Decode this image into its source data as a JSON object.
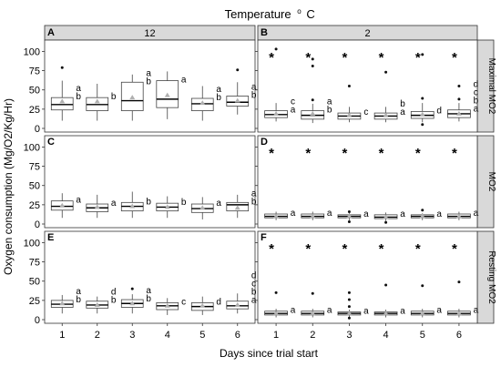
{
  "chart_data": {
    "type": "boxplot",
    "title": "Temperature (°C)",
    "title_main": "Temperature",
    "title_unit": "C",
    "title_degree": "o",
    "xlabel": "Days since trial start",
    "ylabel": "Oxygen consumption (Mg/O2/Kg/Hr)",
    "x_ticks": [
      "1",
      "2",
      "3",
      "4",
      "5",
      "6"
    ],
    "y_ticks": [
      "0",
      "25",
      "50",
      "75",
      "100"
    ],
    "ylim": [
      0,
      110
    ],
    "columns": [
      "12",
      "2"
    ],
    "rows": [
      "Maximal MO2",
      "MO2",
      "Resting MO2"
    ],
    "panels": [
      {
        "id": "A",
        "row": 0,
        "col": 0,
        "boxes": [
          {
            "day": 1,
            "q1": 24,
            "median": 31,
            "q3": 40,
            "wlo": 10,
            "whi": 62,
            "mean": 35,
            "outliers": [
              79
            ],
            "letters": "ab",
            "star": false
          },
          {
            "day": 2,
            "q1": 23,
            "median": 31,
            "q3": 40,
            "wlo": 10,
            "whi": 58,
            "mean": 35,
            "outliers": [],
            "letters": "b",
            "star": false
          },
          {
            "day": 3,
            "q1": 23,
            "median": 36,
            "q3": 60,
            "wlo": 10,
            "whi": 70,
            "mean": 40,
            "outliers": [],
            "letters": "ab",
            "star": false
          },
          {
            "day": 4,
            "q1": 27,
            "median": 38,
            "q3": 62,
            "wlo": 12,
            "whi": 74,
            "mean": 43,
            "outliers": [],
            "letters": "a",
            "star": false
          },
          {
            "day": 5,
            "q1": 23,
            "median": 32,
            "q3": 39,
            "wlo": 10,
            "whi": 55,
            "mean": 33,
            "outliers": [],
            "letters": "ab",
            "star": false
          },
          {
            "day": 6,
            "q1": 29,
            "median": 34,
            "q3": 42,
            "wlo": 18,
            "whi": 60,
            "mean": 36,
            "outliers": [
              76
            ],
            "letters": "ab",
            "star": false
          }
        ]
      },
      {
        "id": "B",
        "row": 0,
        "col": 1,
        "boxes": [
          {
            "day": 1,
            "q1": 14,
            "median": 18,
            "q3": 23,
            "wlo": 9,
            "whi": 33,
            "mean": 19,
            "outliers": [
              103
            ],
            "letters": "ca",
            "star": true
          },
          {
            "day": 2,
            "q1": 12,
            "median": 17,
            "q3": 23,
            "wlo": 7,
            "whi": 32,
            "mean": 19,
            "outliers": [
              37,
              81,
              90
            ],
            "letters": "ab",
            "star": true
          },
          {
            "day": 3,
            "q1": 12,
            "median": 16,
            "q3": 20,
            "wlo": 8,
            "whi": 28,
            "mean": 17,
            "outliers": [
              55
            ],
            "letters": "c",
            "star": true
          },
          {
            "day": 4,
            "q1": 12,
            "median": 16,
            "q3": 20,
            "wlo": 8,
            "whi": 28,
            "mean": 17,
            "outliers": [
              73
            ],
            "letters": "ba",
            "star": true
          },
          {
            "day": 5,
            "q1": 13,
            "median": 17,
            "q3": 22,
            "wlo": 8,
            "whi": 33,
            "mean": 18,
            "outliers": [
              5,
              39,
              96
            ],
            "letters": "d",
            "star": true
          },
          {
            "day": 6,
            "q1": 14,
            "median": 19,
            "q3": 24,
            "wlo": 9,
            "whi": 33,
            "mean": 19,
            "outliers": [
              38,
              55
            ],
            "letters": "dcba",
            "star": true
          }
        ]
      },
      {
        "id": "C",
        "row": 1,
        "col": 0,
        "boxes": [
          {
            "day": 1,
            "q1": 18,
            "median": 23,
            "q3": 30,
            "wlo": 8,
            "whi": 40,
            "mean": 24,
            "outliers": [],
            "letters": "a",
            "star": false
          },
          {
            "day": 2,
            "q1": 16,
            "median": 21,
            "q3": 26,
            "wlo": 8,
            "whi": 38,
            "mean": 22,
            "outliers": [],
            "letters": "a",
            "star": false
          },
          {
            "day": 3,
            "q1": 17,
            "median": 23,
            "q3": 28,
            "wlo": 8,
            "whi": 42,
            "mean": 23,
            "outliers": [],
            "letters": "b",
            "star": false
          },
          {
            "day": 4,
            "q1": 17,
            "median": 22,
            "q3": 27,
            "wlo": 8,
            "whi": 36,
            "mean": 22,
            "outliers": [],
            "letters": "b",
            "star": false
          },
          {
            "day": 5,
            "q1": 15,
            "median": 20,
            "q3": 26,
            "wlo": 6,
            "whi": 35,
            "mean": 21,
            "outliers": [],
            "letters": "a",
            "star": false
          },
          {
            "day": 6,
            "q1": 17,
            "median": 25,
            "q3": 28,
            "wlo": 8,
            "whi": 38,
            "mean": 21,
            "outliers": [],
            "letters": "ab",
            "star": false
          }
        ]
      },
      {
        "id": "D",
        "row": 1,
        "col": 1,
        "boxes": [
          {
            "day": 1,
            "q1": 8,
            "median": 10,
            "q3": 13,
            "wlo": 5,
            "whi": 16,
            "mean": 10,
            "outliers": [],
            "letters": "a",
            "star": true
          },
          {
            "day": 2,
            "q1": 8,
            "median": 10,
            "q3": 13,
            "wlo": 5,
            "whi": 16,
            "mean": 10,
            "outliers": [],
            "letters": "a",
            "star": true
          },
          {
            "day": 3,
            "q1": 8,
            "median": 10,
            "q3": 12,
            "wlo": 5,
            "whi": 14,
            "mean": 10,
            "outliers": [
              3,
              16
            ],
            "letters": "a",
            "star": true
          },
          {
            "day": 4,
            "q1": 7,
            "median": 9,
            "q3": 12,
            "wlo": 4,
            "whi": 15,
            "mean": 9,
            "outliers": [
              2
            ],
            "letters": "a",
            "star": true
          },
          {
            "day": 5,
            "q1": 8,
            "median": 10,
            "q3": 12,
            "wlo": 5,
            "whi": 14,
            "mean": 10,
            "outliers": [
              18
            ],
            "letters": "a",
            "star": true
          },
          {
            "day": 6,
            "q1": 8,
            "median": 10,
            "q3": 13,
            "wlo": 5,
            "whi": 16,
            "mean": 10,
            "outliers": [],
            "letters": "a",
            "star": true
          }
        ]
      },
      {
        "id": "E",
        "row": 2,
        "col": 0,
        "boxes": [
          {
            "day": 1,
            "q1": 16,
            "median": 20,
            "q3": 25,
            "wlo": 8,
            "whi": 32,
            "mean": 21,
            "outliers": [],
            "letters": "ab",
            "star": false
          },
          {
            "day": 2,
            "q1": 15,
            "median": 19,
            "q3": 24,
            "wlo": 8,
            "whi": 30,
            "mean": 19,
            "outliers": [],
            "letters": "db",
            "star": false
          },
          {
            "day": 3,
            "q1": 16,
            "median": 21,
            "q3": 26,
            "wlo": 8,
            "whi": 33,
            "mean": 21,
            "outliers": [
              40
            ],
            "letters": "ab",
            "star": false
          },
          {
            "day": 4,
            "q1": 13,
            "median": 18,
            "q3": 22,
            "wlo": 6,
            "whi": 28,
            "mean": 18,
            "outliers": [],
            "letters": "c",
            "star": false
          },
          {
            "day": 5,
            "q1": 12,
            "median": 17,
            "q3": 22,
            "wlo": 6,
            "whi": 30,
            "mean": 18,
            "outliers": [],
            "letters": "d",
            "star": false
          },
          {
            "day": 6,
            "q1": 14,
            "median": 18,
            "q3": 24,
            "wlo": 8,
            "whi": 34,
            "mean": 19,
            "outliers": [],
            "letters": "dcba",
            "star": false
          }
        ]
      },
      {
        "id": "F",
        "row": 2,
        "col": 1,
        "boxes": [
          {
            "day": 1,
            "q1": 6,
            "median": 8,
            "q3": 11,
            "wlo": 3,
            "whi": 14,
            "mean": 8,
            "outliers": [
              35
            ],
            "letters": "a",
            "star": true
          },
          {
            "day": 2,
            "q1": 6,
            "median": 8,
            "q3": 11,
            "wlo": 3,
            "whi": 14,
            "mean": 8,
            "outliers": [
              34
            ],
            "letters": "a",
            "star": true
          },
          {
            "day": 3,
            "q1": 6,
            "median": 8,
            "q3": 10,
            "wlo": 3,
            "whi": 13,
            "mean": 8,
            "outliers": [
              2,
              17,
              26,
              35
            ],
            "letters": "a",
            "star": true
          },
          {
            "day": 4,
            "q1": 6,
            "median": 8,
            "q3": 10,
            "wlo": 3,
            "whi": 13,
            "mean": 8,
            "outliers": [
              45
            ],
            "letters": "a",
            "star": true
          },
          {
            "day": 5,
            "q1": 6,
            "median": 8,
            "q3": 11,
            "wlo": 3,
            "whi": 14,
            "mean": 8,
            "outliers": [
              44
            ],
            "letters": "a",
            "star": true
          },
          {
            "day": 6,
            "q1": 6,
            "median": 8,
            "q3": 11,
            "wlo": 3,
            "whi": 14,
            "mean": 8,
            "outliers": [
              49
            ],
            "letters": "a",
            "star": true
          }
        ]
      }
    ]
  }
}
